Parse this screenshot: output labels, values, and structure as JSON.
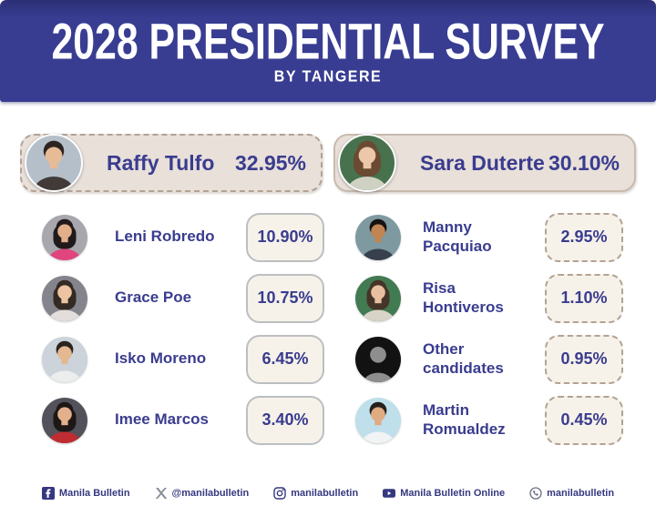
{
  "chart_data": {
    "type": "table",
    "title": "2028 Presidential Survey",
    "subtitle": "By Tangere",
    "categories": [
      "Raffy Tulfo",
      "Sara Duterte",
      "Leni Robredo",
      "Grace Poe",
      "Isko Moreno",
      "Imee Marcos",
      "Manny Pacquiao",
      "Risa Hontiveros",
      "Other candidates",
      "Martin Romualdez"
    ],
    "values": [
      32.95,
      30.1,
      10.9,
      10.75,
      6.45,
      3.4,
      2.95,
      1.1,
      0.95,
      0.45
    ],
    "unit": "%"
  },
  "header": {
    "title": "2028 PRESIDENTIAL SURVEY",
    "subtitle": "BY TANGERE"
  },
  "leaders": [
    {
      "name": "Raffy Tulfo",
      "pct": "32.95%",
      "avatar": {
        "style": "person",
        "hairstyle": "short",
        "bg": "#b4bfca",
        "hair": "#2b2421",
        "skin": "#e6bb95",
        "shirt": "#413a38"
      }
    },
    {
      "name": "Sara Duterte",
      "pct": "30.10%",
      "avatar": {
        "style": "person",
        "hairstyle": "long",
        "bg": "#47724d",
        "hair": "#6b4a33",
        "skin": "#ecc7a9",
        "shirt": "#cfd2c3"
      }
    }
  ],
  "candidates": {
    "left": [
      {
        "name": "Leni Robredo",
        "pct": "10.90%",
        "avatar": {
          "style": "person",
          "hairstyle": "long",
          "bg": "#a7a7ad",
          "hair": "#201a1a",
          "skin": "#e2af8b",
          "shirt": "#e0457e"
        }
      },
      {
        "name": "Grace Poe",
        "pct": "10.75%",
        "avatar": {
          "style": "person",
          "hairstyle": "long",
          "bg": "#84848d",
          "hair": "#342a24",
          "skin": "#ecc4a2",
          "shirt": "#e3dddc"
        }
      },
      {
        "name": "Isko Moreno",
        "pct": "6.45%",
        "avatar": {
          "style": "person",
          "hairstyle": "short",
          "bg": "#ccd3da",
          "hair": "#2a2320",
          "skin": "#e4b891",
          "shirt": "#eceded"
        }
      },
      {
        "name": "Imee Marcos",
        "pct": "3.40%",
        "avatar": {
          "style": "person",
          "hairstyle": "long",
          "bg": "#53525b",
          "hair": "#1d1716",
          "skin": "#e2b08c",
          "shirt": "#bf2d32"
        }
      }
    ],
    "right": [
      {
        "name": "Manny Pacquiao",
        "pct": "2.95%",
        "avatar": {
          "style": "person",
          "hairstyle": "short",
          "bg": "#7e9aa0",
          "hair": "#171211",
          "skin": "#c08553",
          "shirt": "#39404d"
        }
      },
      {
        "name": "Risa Hontiveros",
        "pct": "1.10%",
        "avatar": {
          "style": "person",
          "hairstyle": "long",
          "bg": "#427a52",
          "hair": "#453528",
          "skin": "#e8c0a0",
          "shirt": "#d9d4c8"
        }
      },
      {
        "name": "Other candidates",
        "pct": "0.95%",
        "avatar": {
          "style": "silhouette",
          "bg": "#121212",
          "fg": "#8e8e8e"
        }
      },
      {
        "name": "Martin Romualdez",
        "pct": "0.45%",
        "avatar": {
          "style": "person",
          "hairstyle": "short",
          "bg": "#bfdfeb",
          "hair": "#26201b",
          "skin": "#dfab80",
          "shirt": "#f1f3f4"
        }
      }
    ]
  },
  "footer": {
    "items": [
      {
        "icon": "facebook-icon",
        "label": "Manila Bulletin"
      },
      {
        "icon": "x-icon",
        "label": "@manilabulletin"
      },
      {
        "icon": "instagram-icon",
        "label": "manilabulletin"
      },
      {
        "icon": "youtube-icon",
        "label": "Manila Bulletin Online"
      },
      {
        "icon": "viber-icon",
        "label": "manilabulletin"
      }
    ]
  },
  "colors": {
    "banner": "#383d92",
    "text_navy": "#3a3c8f",
    "pill_bg": "#e8e0d9",
    "pct_box_bg": "#f6f2ea",
    "footer_text": "#35387f"
  }
}
